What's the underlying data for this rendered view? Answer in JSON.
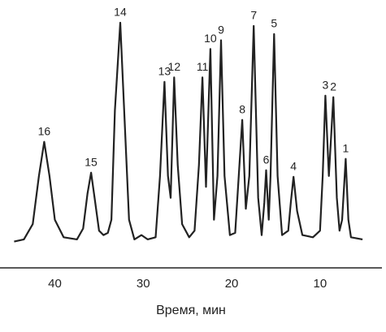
{
  "chart_data": {
    "type": "line",
    "x_label": "Время, мин",
    "xlim": [
      46.2,
      3.0
    ],
    "ylim": [
      -12,
      100
    ],
    "xticks": [
      40,
      30,
      20,
      10
    ],
    "series": [
      {
        "color": "#222222",
        "x": [
          44.6,
          43.5,
          42.5,
          41.8,
          41.2,
          40.6,
          40.0,
          39.0,
          37.5,
          36.8,
          36.3,
          35.9,
          35.5,
          35.0,
          34.5,
          34.0,
          33.6,
          33.2,
          32.6,
          32.1,
          31.6,
          31.0,
          30.2,
          29.5,
          28.6,
          28.1,
          27.6,
          27.2,
          26.9,
          26.5,
          26.1,
          25.6,
          24.8,
          24.2,
          23.7,
          23.3,
          22.9,
          22.4,
          22.0,
          21.6,
          21.2,
          20.8,
          20.2,
          19.6,
          19.2,
          18.8,
          18.4,
          18.0,
          17.5,
          17.0,
          16.6,
          16.3,
          16.1,
          15.8,
          15.6,
          15.2,
          14.8,
          14.3,
          13.6,
          13.3,
          13.0,
          12.6,
          12.0,
          10.8,
          10.0,
          9.7,
          9.4,
          9.0,
          8.5,
          8.1,
          7.8,
          7.5,
          7.1,
          6.8,
          6.5,
          5.2
        ],
        "values": [
          0,
          1,
          8,
          30,
          45.6,
          30,
          10,
          2,
          1,
          6,
          22,
          31.5,
          20,
          5,
          3,
          4,
          10,
          60,
          100,
          55,
          10,
          1,
          3,
          1,
          2,
          30,
          73,
          30,
          20,
          75,
          35,
          8,
          2,
          5,
          35,
          75,
          25,
          88,
          10,
          30,
          92,
          30,
          3,
          4,
          30,
          55.6,
          15,
          30,
          98.5,
          20,
          3,
          18,
          32.6,
          10,
          30,
          94.8,
          30,
          3,
          5,
          18,
          29.6,
          14,
          3,
          2,
          5,
          30,
          66.7,
          30,
          66,
          20,
          5,
          10,
          37.8,
          10,
          2,
          1
        ]
      }
    ],
    "peaks": [
      {
        "label": "16",
        "x": 41.2,
        "y": 45.6
      },
      {
        "label": "15",
        "x": 35.9,
        "y": 31.5
      },
      {
        "label": "14",
        "x": 32.6,
        "y": 100
      },
      {
        "label": "13",
        "x": 27.6,
        "y": 73
      },
      {
        "label": "12",
        "x": 26.5,
        "y": 75
      },
      {
        "label": "11",
        "x": 23.3,
        "y": 75
      },
      {
        "label": "10",
        "x": 22.4,
        "y": 88
      },
      {
        "label": "9",
        "x": 21.2,
        "y": 92
      },
      {
        "label": "8",
        "x": 18.8,
        "y": 55.6
      },
      {
        "label": "7",
        "x": 17.5,
        "y": 98.5
      },
      {
        "label": "6",
        "x": 16.1,
        "y": 32.6
      },
      {
        "label": "5",
        "x": 15.2,
        "y": 94.8
      },
      {
        "label": "4",
        "x": 13.0,
        "y": 29.6
      },
      {
        "label": "3",
        "x": 9.4,
        "y": 66.7
      },
      {
        "label": "2",
        "x": 8.5,
        "y": 66
      },
      {
        "label": "1",
        "x": 7.1,
        "y": 37.8
      }
    ]
  }
}
